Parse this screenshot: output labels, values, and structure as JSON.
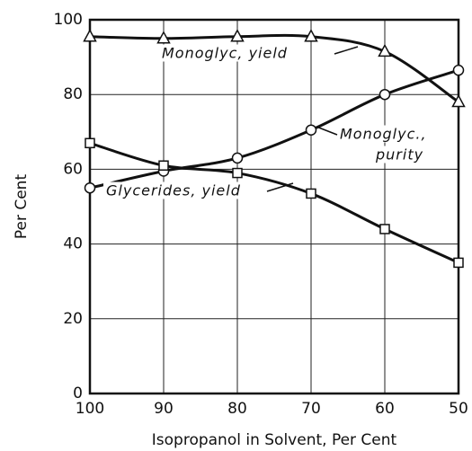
{
  "chart_data": {
    "type": "line",
    "xlabel": "Isopropanol in Solvent, Per Cent",
    "ylabel": "Per Cent",
    "x": [
      100,
      90,
      80,
      70,
      60,
      50
    ],
    "series": [
      {
        "marker": "triangle",
        "color": "#111111",
        "values": [
          95.5,
          95,
          95.5,
          95.5,
          91.5,
          78
        ]
      },
      {
        "marker": "circle",
        "color": "#111111",
        "values": [
          55,
          59.5,
          63,
          70.5,
          80,
          86.5
        ]
      },
      {
        "marker": "square",
        "color": "#111111",
        "values": [
          67,
          61,
          59,
          53.5,
          44,
          35
        ]
      }
    ],
    "annotations": [
      "Monoglyc, yield",
      "Monoglyc.,",
      "purity",
      "Glycerides, yield"
    ],
    "xlim": [
      100,
      50
    ],
    "xticks": [
      100,
      90,
      80,
      70,
      60,
      50
    ],
    "ylim": [
      0,
      100
    ],
    "yticks": [
      0,
      20,
      40,
      60,
      80,
      100
    ],
    "grid": true
  }
}
